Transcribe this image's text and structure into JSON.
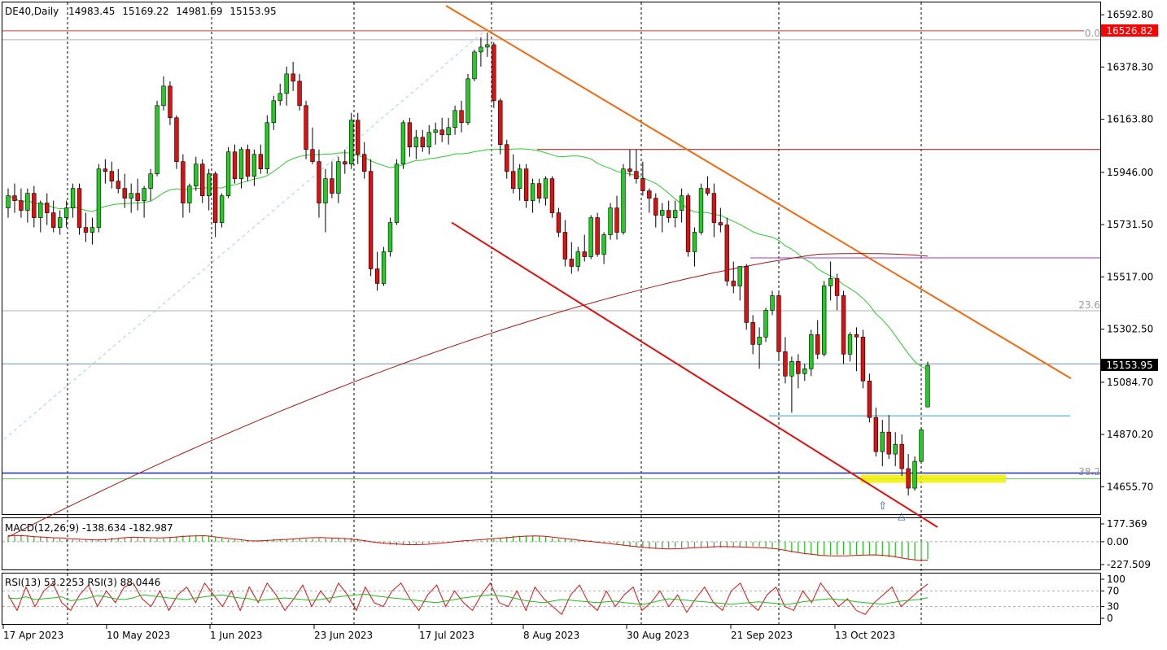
{
  "chart_data": {
    "type": "candlestick",
    "symbol": "DE40,Daily",
    "header_ohlc": [
      "14983.45",
      "15169.22",
      "14981.69",
      "15153.95"
    ],
    "ylim": [
      14550,
      16640
    ],
    "y_ticks": [
      "16592.80",
      "16378.30",
      "16163.80",
      "15946.00",
      "15731.50",
      "15517.00",
      "15302.50",
      "15084.70",
      "14870.20",
      "14655.70"
    ],
    "x_ticks": [
      "17 Apr 2023",
      "10 May 2023",
      "1 Jun 2023",
      "23 Jun 2023",
      "17 Jul 2023",
      "8 Aug 2023",
      "30 Aug 2023",
      "21 Sep 2023",
      "13 Oct 2023"
    ],
    "price_labels": {
      "high_line": "16526.82",
      "current": "15153.95"
    },
    "fib_labels": [
      "0.0",
      "23.6",
      "38.2"
    ],
    "candles": [
      [
        15800,
        15880,
        15760,
        15850
      ],
      [
        15850,
        15900,
        15780,
        15830
      ],
      [
        15830,
        15880,
        15760,
        15790
      ],
      [
        15790,
        15880,
        15740,
        15860
      ],
      [
        15860,
        15890,
        15720,
        15760
      ],
      [
        15760,
        15830,
        15700,
        15820
      ],
      [
        15820,
        15860,
        15730,
        15780
      ],
      [
        15780,
        15830,
        15700,
        15720
      ],
      [
        15720,
        15790,
        15690,
        15760
      ],
      [
        15760,
        15830,
        15720,
        15800
      ],
      [
        15800,
        15900,
        15760,
        15880
      ],
      [
        15880,
        15900,
        15690,
        15720
      ],
      [
        15720,
        15780,
        15660,
        15700
      ],
      [
        15700,
        15760,
        15650,
        15720
      ],
      [
        15720,
        15980,
        15700,
        15960
      ],
      [
        15960,
        16000,
        15900,
        15950
      ],
      [
        15950,
        15990,
        15880,
        15910
      ],
      [
        15910,
        15960,
        15860,
        15880
      ],
      [
        15880,
        15940,
        15800,
        15840
      ],
      [
        15840,
        15900,
        15780,
        15860
      ],
      [
        15860,
        15920,
        15790,
        15830
      ],
      [
        15830,
        15890,
        15760,
        15880
      ],
      [
        15880,
        15960,
        15830,
        15940
      ],
      [
        15940,
        16240,
        15930,
        16220
      ],
      [
        16220,
        16340,
        16200,
        16300
      ],
      [
        16300,
        16320,
        16140,
        16170
      ],
      [
        16170,
        16180,
        15960,
        15990
      ],
      [
        15990,
        16020,
        15760,
        15820
      ],
      [
        15820,
        15900,
        15780,
        15890
      ],
      [
        15890,
        16010,
        15870,
        15980
      ],
      [
        15980,
        16000,
        15820,
        15850
      ],
      [
        15850,
        15960,
        15790,
        15940
      ],
      [
        15940,
        15950,
        15680,
        15740
      ],
      [
        15740,
        15860,
        15720,
        15850
      ],
      [
        15850,
        16050,
        15840,
        16030
      ],
      [
        16030,
        16060,
        15900,
        15920
      ],
      [
        15920,
        16050,
        15880,
        16040
      ],
      [
        16040,
        16060,
        15910,
        15930
      ],
      [
        15930,
        16040,
        15890,
        16020
      ],
      [
        16020,
        16060,
        15940,
        15960
      ],
      [
        15960,
        16180,
        15940,
        16150
      ],
      [
        16150,
        16260,
        16120,
        16240
      ],
      [
        16240,
        16310,
        16220,
        16270
      ],
      [
        16270,
        16380,
        16220,
        16350
      ],
      [
        16350,
        16400,
        16280,
        16320
      ],
      [
        16320,
        16350,
        16200,
        16220
      ],
      [
        16220,
        16240,
        16000,
        16040
      ],
      [
        16040,
        16130,
        15980,
        15990
      ],
      [
        15990,
        16040,
        15760,
        15820
      ],
      [
        15820,
        15960,
        15700,
        15920
      ],
      [
        15920,
        15990,
        15840,
        15860
      ],
      [
        15860,
        16010,
        15820,
        15990
      ],
      [
        15990,
        16040,
        15940,
        15980
      ],
      [
        15980,
        16190,
        15960,
        16160
      ],
      [
        16160,
        16190,
        15980,
        16020
      ],
      [
        16020,
        16070,
        15920,
        15950
      ],
      [
        15950,
        16000,
        15520,
        15550
      ],
      [
        15550,
        15620,
        15460,
        15490
      ],
      [
        15490,
        15640,
        15480,
        15620
      ],
      [
        15620,
        15760,
        15600,
        15740
      ],
      [
        15740,
        16000,
        15730,
        15980
      ],
      [
        15980,
        16160,
        15960,
        16150
      ],
      [
        16150,
        16170,
        16010,
        16050
      ],
      [
        16050,
        16120,
        16000,
        16090
      ],
      [
        16090,
        16120,
        16030,
        16050
      ],
      [
        16050,
        16140,
        16020,
        16110
      ],
      [
        16110,
        16150,
        16060,
        16120
      ],
      [
        16120,
        16170,
        16070,
        16100
      ],
      [
        16100,
        16170,
        16060,
        16130
      ],
      [
        16130,
        16220,
        16100,
        16200
      ],
      [
        16200,
        16240,
        16110,
        16150
      ],
      [
        16150,
        16350,
        16140,
        16330
      ],
      [
        16330,
        16450,
        16320,
        16440
      ],
      [
        16440,
        16500,
        16380,
        16460
      ],
      [
        16460,
        16520,
        16420,
        16470
      ],
      [
        16470,
        16480,
        16210,
        16240
      ],
      [
        16240,
        16250,
        16020,
        16060
      ],
      [
        16060,
        16080,
        15920,
        15950
      ],
      [
        15950,
        16020,
        15860,
        15880
      ],
      [
        15880,
        15980,
        15830,
        15960
      ],
      [
        15960,
        15980,
        15800,
        15830
      ],
      [
        15830,
        15920,
        15780,
        15900
      ],
      [
        15900,
        15920,
        15820,
        15840
      ],
      [
        15840,
        15930,
        15810,
        15920
      ],
      [
        15920,
        15930,
        15760,
        15780
      ],
      [
        15780,
        15800,
        15680,
        15700
      ],
      [
        15700,
        15750,
        15560,
        15590
      ],
      [
        15590,
        15660,
        15530,
        15560
      ],
      [
        15560,
        15640,
        15540,
        15620
      ],
      [
        15620,
        15690,
        15580,
        15600
      ],
      [
        15600,
        15770,
        15590,
        15760
      ],
      [
        15760,
        15780,
        15600,
        15610
      ],
      [
        15610,
        15700,
        15570,
        15690
      ],
      [
        15690,
        15820,
        15670,
        15800
      ],
      [
        15800,
        15850,
        15670,
        15700
      ],
      [
        15700,
        15980,
        15690,
        15960
      ],
      [
        15960,
        16040,
        15930,
        15950
      ],
      [
        15950,
        16040,
        15900,
        15920
      ],
      [
        15920,
        15990,
        15850,
        15870
      ],
      [
        15870,
        15880,
        15780,
        15840
      ],
      [
        15840,
        15860,
        15720,
        15770
      ],
      [
        15770,
        15820,
        15700,
        15790
      ],
      [
        15790,
        15830,
        15740,
        15760
      ],
      [
        15760,
        15830,
        15720,
        15790
      ],
      [
        15790,
        15880,
        15740,
        15850
      ],
      [
        15850,
        15860,
        15600,
        15620
      ],
      [
        15620,
        15720,
        15560,
        15700
      ],
      [
        15700,
        15900,
        15690,
        15880
      ],
      [
        15880,
        15930,
        15850,
        15860
      ],
      [
        15860,
        15900,
        15680,
        15740
      ],
      [
        15740,
        15800,
        15700,
        15730
      ],
      [
        15730,
        15760,
        15480,
        15500
      ],
      [
        15500,
        15580,
        15450,
        15480
      ],
      [
        15480,
        15560,
        15420,
        15560
      ],
      [
        15560,
        15570,
        15300,
        15330
      ],
      [
        15330,
        15360,
        15200,
        15240
      ],
      [
        15240,
        15310,
        15140,
        15270
      ],
      [
        15270,
        15390,
        15250,
        15380
      ],
      [
        15380,
        15460,
        15360,
        15440
      ],
      [
        15440,
        15460,
        15180,
        15210
      ],
      [
        15210,
        15270,
        15080,
        15110
      ],
      [
        15110,
        15190,
        14960,
        15170
      ],
      [
        15170,
        15200,
        15060,
        15120
      ],
      [
        15120,
        15160,
        15090,
        15140
      ],
      [
        15140,
        15300,
        15110,
        15280
      ],
      [
        15280,
        15340,
        15180,
        15200
      ],
      [
        15200,
        15500,
        15190,
        15480
      ],
      [
        15480,
        15580,
        15420,
        15510
      ],
      [
        15510,
        15530,
        15380,
        15440
      ],
      [
        15440,
        15460,
        15160,
        15200
      ],
      [
        15200,
        15290,
        15170,
        15280
      ],
      [
        15280,
        15310,
        15130,
        15270
      ],
      [
        15270,
        15300,
        15060,
        15090
      ],
      [
        15090,
        15120,
        14920,
        14940
      ],
      [
        14940,
        14980,
        14780,
        14800
      ],
      [
        14800,
        14930,
        14740,
        14880
      ],
      [
        14880,
        14950,
        14770,
        14790
      ],
      [
        14790,
        14880,
        14740,
        14830
      ],
      [
        14830,
        14870,
        14700,
        14730
      ],
      [
        14730,
        14790,
        14620,
        14650
      ],
      [
        14650,
        14780,
        14640,
        14760
      ],
      [
        14760,
        14900,
        14750,
        14890
      ],
      [
        14983.45,
        15169.22,
        14981.69,
        15153.95
      ]
    ],
    "lines": {
      "resistance_trend": [
        16630,
        15100
      ],
      "support_trend": [
        15740,
        14490
      ],
      "hline_high": 16526.82,
      "hline_fib0": 16490,
      "hline_red": 16040,
      "hline_purple": 15595,
      "hline_fib236": 15378,
      "hline_last": 15160,
      "hline_cyan": 14947,
      "hline_blue_382": 14712,
      "hline_green": 14688
    },
    "indicators": {
      "macd_label": "MACD(12,26,9) -138.634 -182.987",
      "macd_ticks": [
        "177.369",
        "0.00",
        "-227.509"
      ],
      "macd_range": [
        -227.509,
        177.369
      ],
      "macd_signal": [
        60,
        62,
        58,
        50,
        45,
        40,
        38,
        30,
        25,
        20,
        18,
        22,
        30,
        40,
        45,
        42,
        40,
        38,
        42,
        48,
        55,
        58,
        60,
        50,
        40,
        30,
        20,
        10,
        8,
        12,
        18,
        22,
        28,
        35,
        40,
        42,
        38,
        35,
        30,
        20,
        10,
        -5,
        -15,
        -20,
        -25,
        -30,
        -28,
        -25,
        -18,
        -10,
        0,
        10,
        15,
        20,
        28,
        35,
        42,
        50,
        55,
        58,
        55,
        45,
        35,
        25,
        15,
        5,
        -5,
        -15,
        -25,
        -35,
        -45,
        -55,
        -62,
        -68,
        -72,
        -70,
        -65,
        -60,
        -55,
        -50,
        -48,
        -50,
        -52,
        -55,
        -58,
        -62,
        -70,
        -85,
        -100,
        -115,
        -125,
        -135,
        -140,
        -142,
        -140,
        -135,
        -132,
        -130,
        -135,
        -145,
        -160,
        -175,
        -185,
        -183
      ],
      "macd_hist_dir": "green_bars",
      "rsi_label": "RSI(13) 53.2253  RSI(3) 88.0446",
      "rsi_ticks": [
        "100",
        "70",
        "30",
        "0"
      ],
      "rsi13": [
        52,
        50,
        55,
        48,
        50,
        52,
        55,
        45,
        48,
        52,
        58,
        55,
        50,
        48,
        52,
        60,
        58,
        55,
        52,
        50,
        48,
        52,
        55,
        58,
        60,
        55,
        52,
        50,
        45,
        48,
        50,
        52,
        50,
        48,
        46,
        48,
        52,
        55,
        58,
        60,
        62,
        58,
        55,
        52,
        50,
        48,
        45,
        42,
        40,
        44,
        48,
        52,
        55,
        58,
        60,
        58,
        55,
        50,
        45,
        42,
        40,
        44,
        48,
        46,
        44,
        42,
        40,
        42,
        44,
        40,
        38,
        35,
        40,
        45,
        50,
        48,
        46,
        44,
        42,
        40,
        38,
        36,
        38,
        40,
        42,
        40,
        38,
        35,
        38,
        42,
        45,
        48,
        50,
        48,
        46,
        42,
        40,
        38,
        36,
        40,
        44,
        46,
        48,
        53
      ],
      "rsi3": [
        60,
        20,
        80,
        30,
        70,
        90,
        40,
        20,
        60,
        85,
        30,
        70,
        40,
        80,
        90,
        50,
        30,
        70,
        20,
        60,
        80,
        40,
        90,
        60,
        30,
        70,
        20,
        80,
        40,
        90,
        60,
        20,
        50,
        85,
        30,
        70,
        40,
        90,
        60,
        20,
        80,
        40,
        30,
        70,
        90,
        50,
        20,
        60,
        85,
        30,
        70,
        40,
        20,
        60,
        90,
        40,
        30,
        70,
        20,
        80,
        50,
        30,
        10,
        60,
        85,
        40,
        20,
        70,
        30,
        60,
        80,
        20,
        40,
        70,
        30,
        60,
        15,
        50,
        80,
        40,
        20,
        70,
        90,
        40,
        20,
        60,
        80,
        30,
        20,
        70,
        40,
        90,
        60,
        30,
        50,
        20,
        10,
        40,
        60,
        80,
        30,
        50,
        70,
        88
      ]
    }
  }
}
